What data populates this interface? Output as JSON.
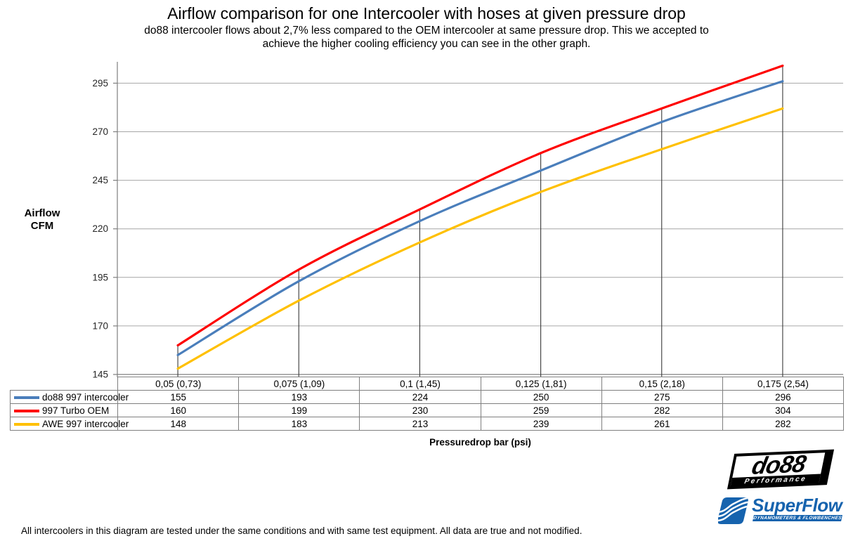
{
  "page": {
    "footnote": "All intercoolers in this diagram are tested under the same conditions and with same test equipment. All data are true and not modified."
  },
  "chart_data": {
    "type": "line",
    "title": "Airflow comparison for one Intercooler with hoses at given pressure drop",
    "subtitle": "do88 intercooler flows about 2,7% less compared to the OEM intercooler at same pressure drop. This we accepted to\nachieve the higher cooling efficiency you can see in the other graph.",
    "ylabel": "Airflow\nCFM",
    "xlabel": "Pressuredrop bar (psi)",
    "categories": [
      "0,05 (0,73)",
      "0,075 (1,09)",
      "0,1 (1,45)",
      "0,125 (1,81)",
      "0,15 (2,18)",
      "0,175 (2,54)"
    ],
    "series": [
      {
        "name": "do88 997 intercooler",
        "color": "#4A7EBB",
        "values": [
          155,
          193,
          224,
          250,
          275,
          296
        ]
      },
      {
        "name": "997 Turbo OEM",
        "color": "#FE0000",
        "values": [
          160,
          199,
          230,
          259,
          282,
          304
        ]
      },
      {
        "name": "AWE 997 intercooler",
        "color": "#FFC000",
        "values": [
          148,
          183,
          213,
          239,
          261,
          282
        ]
      }
    ],
    "y_ticks": [
      145,
      170,
      195,
      220,
      245,
      270,
      295
    ],
    "ylim": [
      145,
      306
    ],
    "grid": true,
    "drop_lines": true,
    "smooth": true,
    "legend_position": "table-left",
    "colors": {
      "grid": "#A6A6A6",
      "axis": "#7F7F7F",
      "drop_line": "#3a3a3a",
      "tick_text": "#262626"
    }
  },
  "logos": {
    "do88": {
      "name": "do88",
      "tagline": "Performance"
    },
    "superflow": {
      "name": "SuperFlow",
      "tagline": "DYNAMOMETERS & FLOWBENCHES"
    }
  }
}
